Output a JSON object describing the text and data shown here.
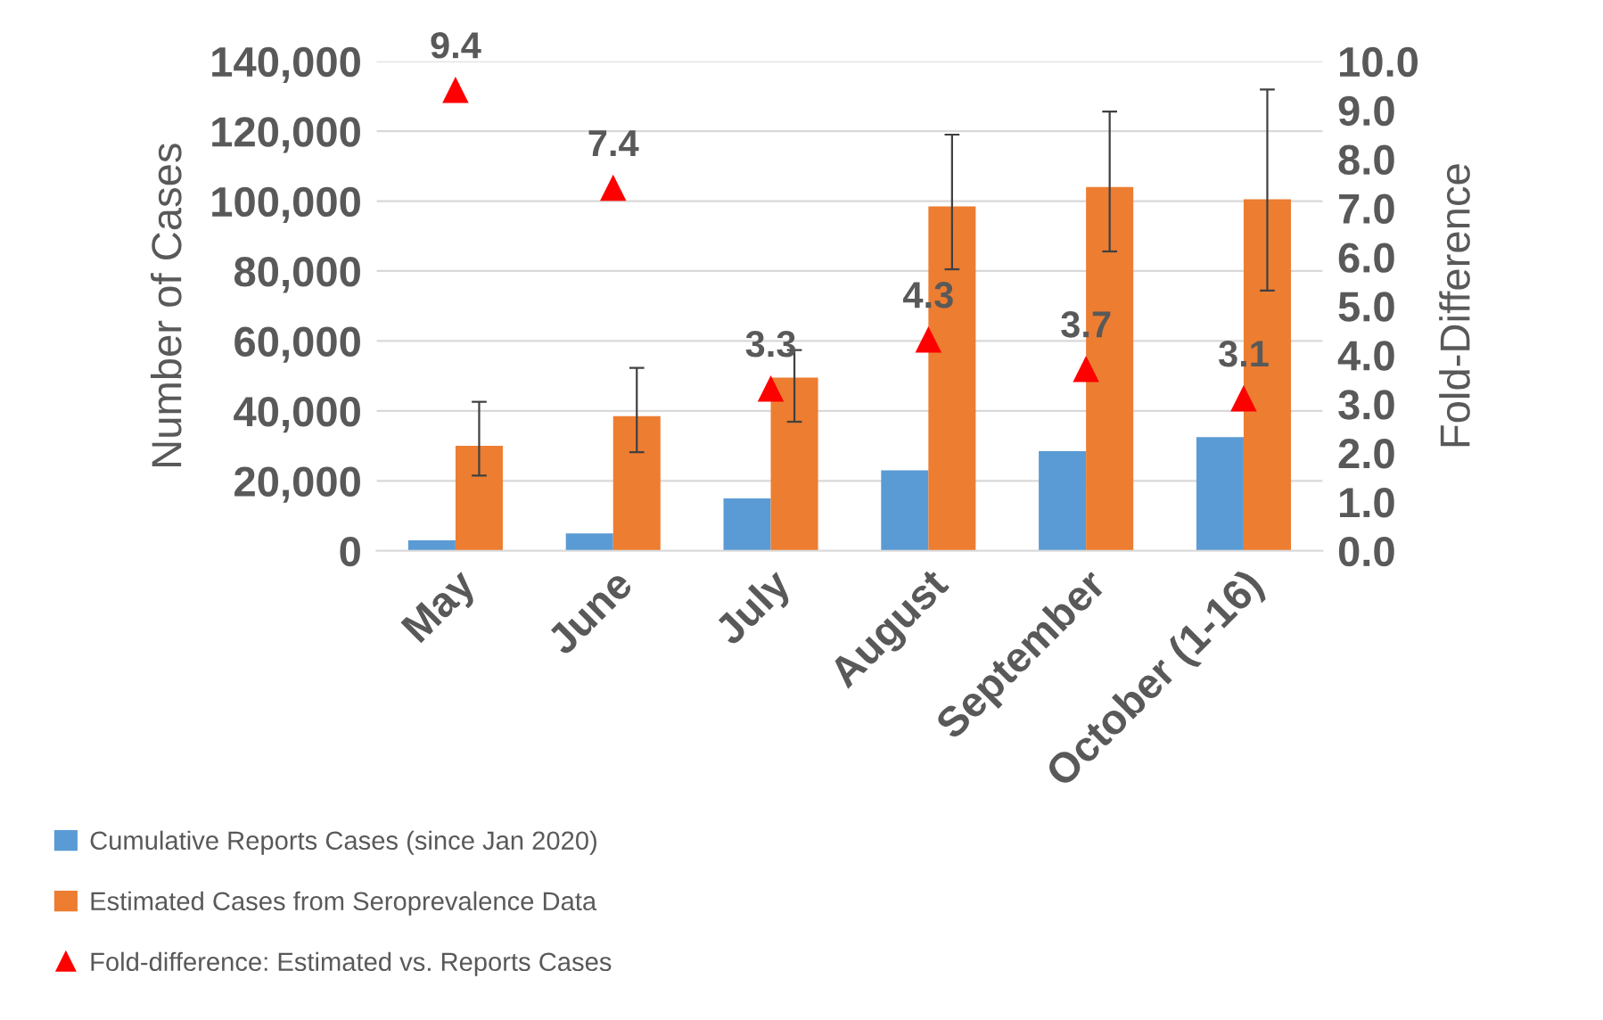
{
  "chart_data": {
    "type": "bar",
    "ylabel": "Number of Cases",
    "y2label": "Fold-Difference",
    "categories": [
      "May",
      "June",
      "July",
      "August",
      "September",
      "October (1-16)"
    ],
    "series": [
      {
        "name": "Cumulative Reports Cases (since Jan 2020)",
        "color": "#5b9bd5",
        "values": [
          3000,
          5000,
          15000,
          23000,
          28500,
          32500
        ]
      },
      {
        "name": "Estimated Cases from Seroprevalence Data",
        "color": "#ed7d31",
        "values": [
          30000,
          38500,
          49500,
          98500,
          104000,
          100500
        ],
        "errors": [
          [
            21500,
            42600
          ],
          [
            28200,
            52300
          ],
          [
            36900,
            57400
          ],
          [
            80500,
            119000
          ],
          [
            85600,
            125600
          ],
          [
            74400,
            131900
          ]
        ]
      },
      {
        "name": "Fold-difference: Estimated vs. Reports Cases",
        "type": "scatter",
        "axis": "y2",
        "marker": "triangle",
        "color": "#ff0000",
        "values": [
          9.4,
          7.4,
          3.3,
          4.3,
          3.7,
          3.1
        ],
        "data_labels": true
      }
    ],
    "ylim": [
      0,
      140000
    ],
    "yticks": [
      {
        "value": 0,
        "label": "0"
      },
      {
        "value": 20000,
        "label": "20,000"
      },
      {
        "value": 40000,
        "label": "40,000"
      },
      {
        "value": 60000,
        "label": "60,000"
      },
      {
        "value": 80000,
        "label": "80,000"
      },
      {
        "value": 100000,
        "label": "100,000"
      },
      {
        "value": 120000,
        "label": "120,000"
      },
      {
        "value": 140000,
        "label": "140,000"
      }
    ],
    "y2lim": [
      0,
      10
    ],
    "y2ticks": [
      {
        "value": 0,
        "label": "0.0"
      },
      {
        "value": 1,
        "label": "1.0"
      },
      {
        "value": 2,
        "label": "2.0"
      },
      {
        "value": 3,
        "label": "3.0"
      },
      {
        "value": 4,
        "label": "4.0"
      },
      {
        "value": 5,
        "label": "5.0"
      },
      {
        "value": 6,
        "label": "6.0"
      },
      {
        "value": 7,
        "label": "7.0"
      },
      {
        "value": 8,
        "label": "8.0"
      },
      {
        "value": 9,
        "label": "9.0"
      },
      {
        "value": 10,
        "label": "10.0"
      }
    ],
    "grid": "y",
    "legend": "bottom left"
  }
}
